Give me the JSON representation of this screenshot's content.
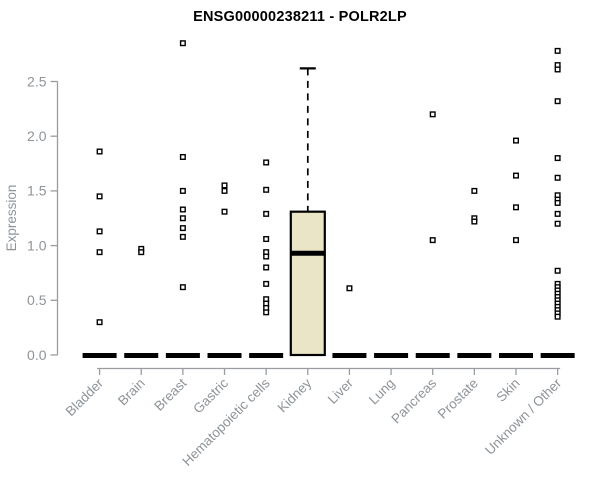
{
  "title": "ENSG00000238211 - POLR2LP",
  "y_axis": {
    "label": "Expression"
  },
  "colors": {
    "axis_line": "#999da1",
    "axis_text": "#8e9499",
    "marker": "#000000",
    "zero_bar": "#000000",
    "box_fill": "#EBE5C7",
    "box_stroke": "#000000",
    "title_text": "#000000",
    "background": "#ffffff"
  },
  "chart_data": {
    "type": "boxplot",
    "title": "ENSG00000238211 - POLR2LP",
    "xlabel": "",
    "ylabel": "Expression",
    "ylim": [
      0,
      2.9
    ],
    "grid": false,
    "legend": false,
    "yticks": [
      0,
      0.5,
      1.0,
      1.5,
      2.0,
      2.5
    ],
    "ytick_labels": [
      "0.0",
      "0.5",
      "1.0",
      "1.5",
      "2.0",
      "2.5"
    ],
    "categories": [
      "Bladder",
      "Brain",
      "Breast",
      "Gastric",
      "Hematopoietic cells",
      "Kidney",
      "Liver",
      "Lung",
      "Pancreas",
      "Prostate",
      "Skin",
      "Unknown / Other"
    ],
    "series": [
      {
        "name": "Bladder",
        "zero_bar": true,
        "points": [
          1.86,
          1.45,
          1.13,
          0.94,
          0.3
        ],
        "box": null
      },
      {
        "name": "Brain",
        "zero_bar": true,
        "points": [
          0.97,
          0.94
        ],
        "box": null
      },
      {
        "name": "Breast",
        "zero_bar": true,
        "points": [
          2.85,
          1.81,
          1.5,
          1.33,
          1.25,
          1.16,
          1.08,
          0.62
        ],
        "box": null
      },
      {
        "name": "Gastric",
        "zero_bar": true,
        "points": [
          1.55,
          1.5,
          1.31
        ],
        "box": null
      },
      {
        "name": "Hematopoietic cells",
        "zero_bar": true,
        "points": [
          1.76,
          1.51,
          1.29,
          1.06,
          0.94,
          0.9,
          0.8,
          0.65,
          0.51,
          0.47,
          0.43,
          0.39
        ],
        "box": null
      },
      {
        "name": "Kidney",
        "zero_bar": false,
        "points": [],
        "box": {
          "q1": 0.0,
          "median": 0.93,
          "q3": 1.31,
          "whisker_low": 0.0,
          "whisker_high": 2.62
        }
      },
      {
        "name": "Liver",
        "zero_bar": true,
        "points": [
          0.61
        ],
        "box": null
      },
      {
        "name": "Lung",
        "zero_bar": true,
        "points": [],
        "box": null
      },
      {
        "name": "Pancreas",
        "zero_bar": true,
        "points": [
          2.2,
          1.05
        ],
        "box": null
      },
      {
        "name": "Prostate",
        "zero_bar": true,
        "points": [
          1.5,
          1.25,
          1.22
        ],
        "box": null
      },
      {
        "name": "Skin",
        "zero_bar": true,
        "points": [
          1.96,
          1.64,
          1.35,
          1.05
        ],
        "box": null
      },
      {
        "name": "Unknown / Other",
        "zero_bar": true,
        "points": [
          2.78,
          2.65,
          2.61,
          2.32,
          1.8,
          1.62,
          1.46,
          1.42,
          1.39,
          1.29,
          1.2,
          0.77,
          0.65,
          0.62,
          0.59,
          0.56,
          0.53,
          0.5,
          0.47,
          0.44,
          0.41,
          0.38,
          0.35
        ],
        "box": null
      }
    ]
  }
}
